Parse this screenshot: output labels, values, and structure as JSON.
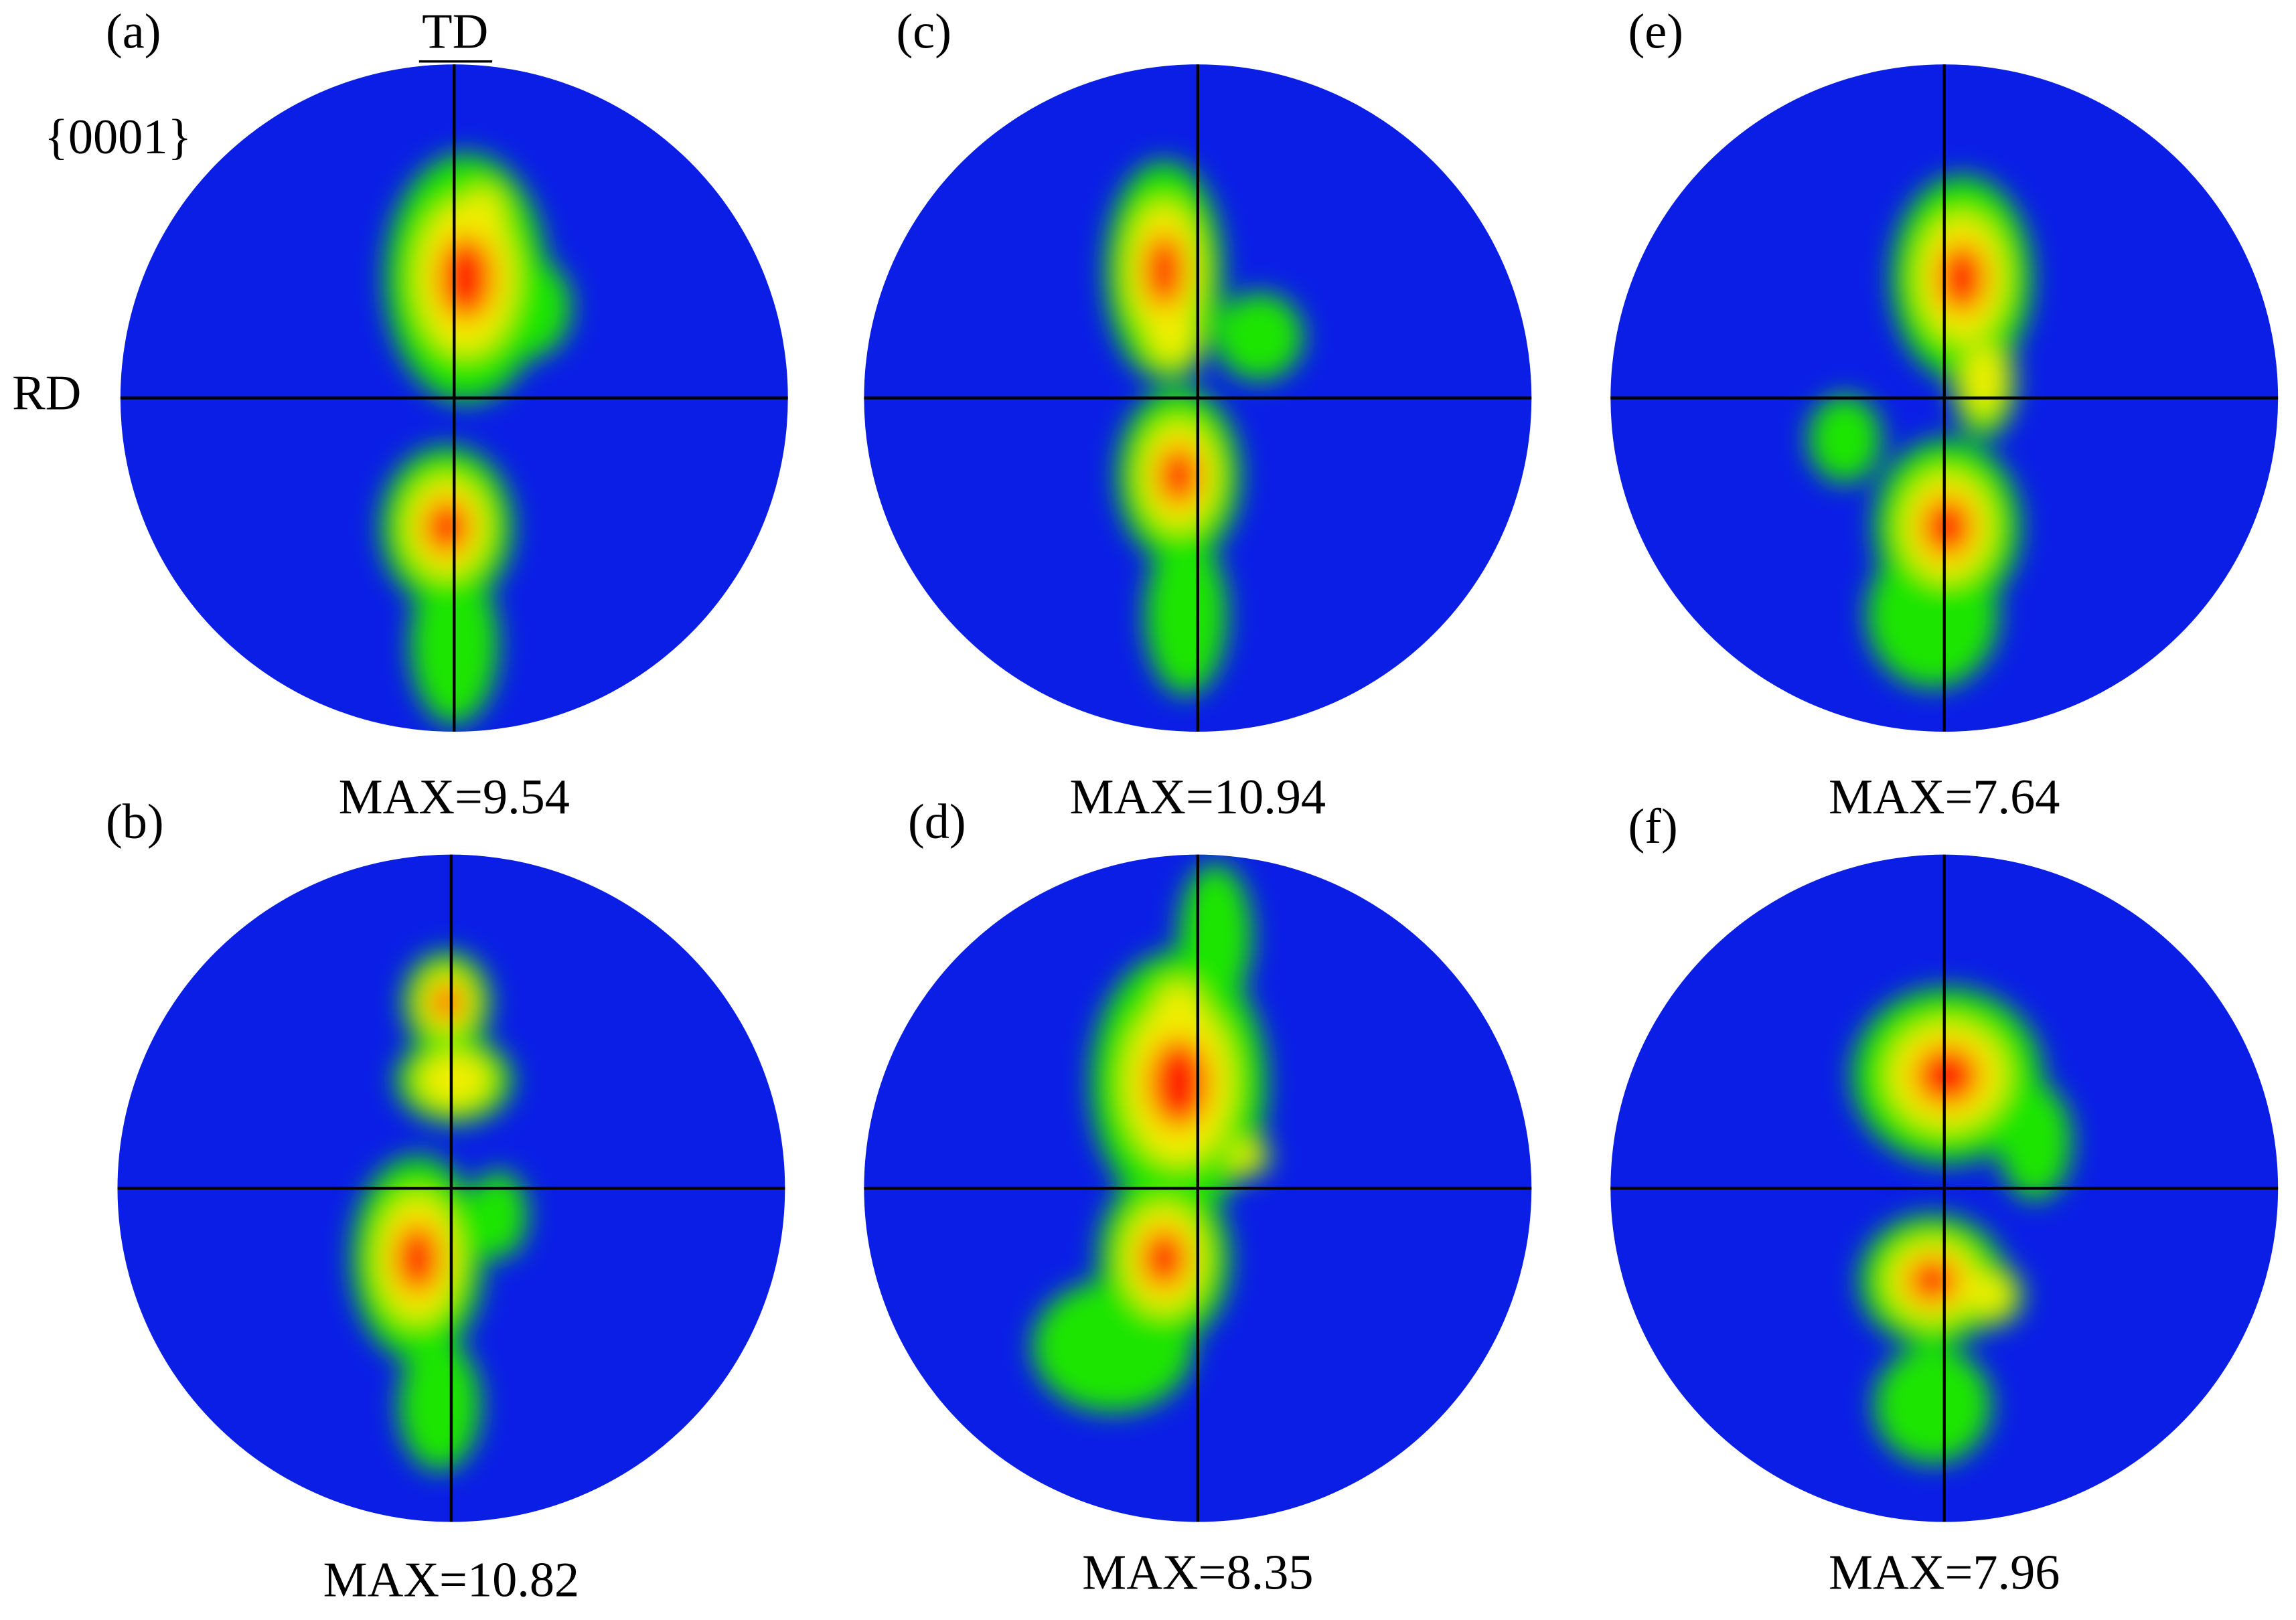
{
  "annotations": {
    "td": "TD",
    "rd": "RD",
    "plane": "{0001}"
  },
  "panels": [
    {
      "label": "(a)",
      "max": "MAX=9.54"
    },
    {
      "label": "(b)",
      "max": "MAX=10.82"
    },
    {
      "label": "(c)",
      "max": "MAX=10.94"
    },
    {
      "label": "(d)",
      "max": "MAX=8.35"
    },
    {
      "label": "(e)",
      "max": "MAX=7.64"
    },
    {
      "label": "(f)",
      "max": "MAX=7.96"
    }
  ]
}
